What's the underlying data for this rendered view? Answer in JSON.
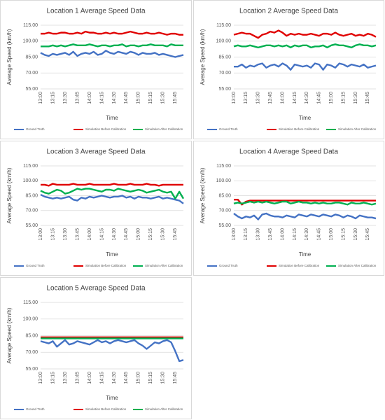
{
  "chart_data": [
    {
      "type": "line",
      "title": "Location 1 Average Speed Data",
      "y_label": "Average Speed (km/h)",
      "x_label": "Time",
      "categories": [
        "13:00",
        null,
        null,
        "13:15",
        null,
        null,
        "13:30",
        null,
        null,
        "13:45",
        null,
        null,
        "14:00",
        null,
        null,
        "14:15",
        null,
        null,
        "14:30",
        null,
        null,
        "14:45",
        null,
        null,
        "15:00",
        null,
        null,
        "15:15",
        null,
        null,
        "15:30",
        null,
        null,
        "15:45",
        null,
        null
      ],
      "ylim": [
        55,
        115
      ],
      "yticks": [
        {
          "value": 55,
          "label": "55.00"
        },
        {
          "value": 70,
          "label": "70.00"
        },
        {
          "value": 85,
          "label": "85.00"
        },
        {
          "value": 100,
          "label": "100.00"
        },
        {
          "value": 115,
          "label": "115.00"
        }
      ],
      "grid": true,
      "series": [
        {
          "name": "Ground Truth",
          "color": "#4472c4",
          "values": [
            89,
            87,
            86,
            88,
            87,
            88,
            89,
            87,
            90,
            86,
            88,
            89,
            88,
            90,
            87,
            88,
            91,
            89,
            88,
            90,
            89,
            88,
            90,
            89,
            87,
            89,
            88,
            88,
            89,
            87,
            88,
            87,
            86,
            85,
            86,
            87
          ]
        },
        {
          "name": "Simulation Before Calibration",
          "color": "#e00000",
          "values": [
            107,
            107,
            108,
            107,
            107,
            108,
            108,
            107,
            107,
            108,
            107,
            109,
            108,
            108,
            107,
            107,
            108,
            107,
            108,
            107,
            107,
            108,
            109,
            108,
            107,
            107,
            108,
            107,
            107,
            108,
            107,
            106,
            107,
            107,
            106,
            106
          ]
        },
        {
          "name": "Simulation After Calibration",
          "color": "#00b050",
          "values": [
            95,
            95,
            95,
            96,
            95,
            96,
            95,
            96,
            97,
            96,
            96,
            96,
            97,
            96,
            95,
            96,
            96,
            95,
            96,
            96,
            97,
            95,
            96,
            96,
            95,
            96,
            96,
            97,
            96,
            96,
            96,
            95,
            97,
            96,
            96,
            96
          ]
        }
      ]
    },
    {
      "type": "line",
      "title": "Location 2 Average Speed Data",
      "y_label": "Average Speed (km/h)",
      "x_label": "Time",
      "categories": [
        "13:00",
        null,
        null,
        "13:15",
        null,
        null,
        "13:30",
        null,
        null,
        "13:45",
        null,
        null,
        "14:00",
        null,
        null,
        "14:15",
        null,
        null,
        "14:30",
        null,
        null,
        "14:45",
        null,
        null,
        "15:00",
        null,
        null,
        "15:15",
        null,
        null,
        "15:30",
        null,
        null,
        "15:45",
        null,
        null
      ],
      "ylim": [
        55,
        115
      ],
      "yticks": [
        {
          "value": 55,
          "label": "55.00"
        },
        {
          "value": 70,
          "label": "70.00"
        },
        {
          "value": 85,
          "label": "85.00"
        },
        {
          "value": 100,
          "label": "100.00"
        },
        {
          "value": 115,
          "label": "115.00"
        }
      ],
      "grid": true,
      "series": [
        {
          "name": "Ground Truth",
          "color": "#4472c4",
          "values": [
            76,
            76,
            78,
            75,
            77,
            76,
            78,
            79,
            75,
            77,
            78,
            76,
            79,
            77,
            73,
            78,
            77,
            76,
            77,
            75,
            79,
            78,
            73,
            78,
            77,
            75,
            79,
            78,
            76,
            78,
            77,
            76,
            78,
            75,
            76,
            77
          ]
        },
        {
          "name": "Simulation Before Calibration",
          "color": "#e00000",
          "values": [
            106,
            107,
            108,
            107,
            107,
            105,
            103,
            106,
            107,
            109,
            108,
            110,
            108,
            105,
            107,
            106,
            107,
            106,
            106,
            107,
            106,
            105,
            107,
            107,
            106,
            108,
            106,
            105,
            106,
            107,
            105,
            106,
            105,
            107,
            106,
            104
          ]
        },
        {
          "name": "Simulation After Calibration",
          "color": "#00b050",
          "values": [
            95,
            96,
            95,
            95,
            96,
            95,
            94,
            95,
            96,
            96,
            95,
            96,
            95,
            96,
            94,
            96,
            95,
            96,
            96,
            94,
            95,
            95,
            96,
            94,
            96,
            97,
            96,
            96,
            95,
            94,
            96,
            97,
            96,
            96,
            95,
            96
          ]
        }
      ]
    },
    {
      "type": "line",
      "title": "Location 3 Average Speed Data",
      "y_label": "Average Speed (km/h)",
      "x_label": "Time",
      "categories": [
        "13:00",
        null,
        null,
        "13:15",
        null,
        null,
        "13:30",
        null,
        null,
        "13:45",
        null,
        null,
        "14:00",
        null,
        null,
        "14:15",
        null,
        null,
        "14:30",
        null,
        null,
        "14:45",
        null,
        null,
        "15:00",
        null,
        null,
        "15:15",
        null,
        null,
        "15:30",
        null,
        null,
        "15:45",
        null,
        null
      ],
      "ylim": [
        55,
        115
      ],
      "yticks": [
        {
          "value": 55,
          "label": "55.00"
        },
        {
          "value": 70,
          "label": "70.00"
        },
        {
          "value": 85,
          "label": "85.00"
        },
        {
          "value": 100,
          "label": "100.00"
        },
        {
          "value": 115,
          "label": "115.00"
        }
      ],
      "grid": true,
      "series": [
        {
          "name": "Ground Truth",
          "color": "#4472c4",
          "values": [
            86,
            84,
            83,
            82,
            83,
            82,
            83,
            84,
            81,
            80,
            83,
            82,
            84,
            83,
            84,
            85,
            84,
            83,
            84,
            84,
            85,
            83,
            84,
            82,
            84,
            83,
            83,
            82,
            83,
            84,
            82,
            83,
            82,
            81,
            80,
            77
          ]
        },
        {
          "name": "Simulation Before Calibration",
          "color": "#e00000",
          "values": [
            96,
            96,
            95,
            97,
            96,
            96,
            96,
            96,
            97,
            96,
            96,
            96,
            97,
            96,
            96,
            96,
            96,
            96,
            97,
            96,
            96,
            96,
            97,
            96,
            96,
            96,
            97,
            96,
            96,
            95,
            96,
            96,
            96,
            96,
            96,
            96
          ]
        },
        {
          "name": "Simulation After Calibration",
          "color": "#00b050",
          "values": [
            90,
            88,
            87,
            89,
            91,
            90,
            87,
            88,
            90,
            92,
            91,
            92,
            92,
            91,
            90,
            89,
            91,
            91,
            90,
            92,
            91,
            90,
            89,
            90,
            91,
            90,
            88,
            89,
            90,
            91,
            89,
            88,
            89,
            82,
            89,
            82
          ]
        }
      ]
    },
    {
      "type": "line",
      "title": "Location 4 Average Speed Data",
      "y_label": "Average Speed (km/h)",
      "x_label": "Time",
      "categories": [
        "13:00",
        null,
        null,
        "13:15",
        null,
        null,
        "13:30",
        null,
        null,
        "13:45",
        null,
        null,
        "14:00",
        null,
        null,
        "14:15",
        null,
        null,
        "14:30",
        null,
        null,
        "14:45",
        null,
        null,
        "15:00",
        null,
        null,
        "15:15",
        null,
        null,
        "15:30",
        null,
        null,
        "15:45",
        null,
        null
      ],
      "ylim": [
        55,
        115
      ],
      "yticks": [
        {
          "value": 55,
          "label": "55.00"
        },
        {
          "value": 70,
          "label": "70.00"
        },
        {
          "value": 85,
          "label": "85.00"
        },
        {
          "value": 100,
          "label": "100.00"
        },
        {
          "value": 115,
          "label": "115.00"
        }
      ],
      "grid": true,
      "series": [
        {
          "name": "Ground Truth",
          "color": "#4472c4",
          "values": [
            67,
            64,
            62,
            64,
            63,
            65,
            61,
            66,
            67,
            65,
            64,
            64,
            63,
            65,
            64,
            63,
            66,
            65,
            64,
            66,
            65,
            64,
            66,
            65,
            64,
            66,
            65,
            63,
            65,
            64,
            62,
            65,
            64,
            63,
            63,
            62
          ]
        },
        {
          "name": "Simulation Before Calibration",
          "color": "#e00000",
          "values": [
            81,
            81,
            76,
            79,
            80,
            80,
            80,
            80,
            80,
            80,
            80,
            80,
            80,
            80,
            80,
            80,
            80,
            80,
            80,
            80,
            80,
            80,
            80,
            80,
            80,
            80,
            80,
            80,
            80,
            80,
            80,
            80,
            80,
            80,
            80,
            80
          ]
        },
        {
          "name": "Simulation After Calibration",
          "color": "#00b050",
          "values": [
            77,
            78,
            77,
            78,
            79,
            78,
            79,
            78,
            79,
            78,
            77,
            78,
            79,
            79,
            77,
            78,
            79,
            78,
            78,
            77,
            78,
            77,
            78,
            77,
            77,
            78,
            78,
            77,
            76,
            78,
            77,
            77,
            78,
            77,
            76,
            77
          ]
        }
      ]
    },
    {
      "type": "line",
      "title": "Location 5 Average Speed Data",
      "y_label": "Average Speed (km/h)",
      "x_label": "Time",
      "categories": [
        "13:00",
        null,
        null,
        "13:15",
        null,
        null,
        "13:30",
        null,
        null,
        "13:45",
        null,
        null,
        "14:00",
        null,
        null,
        "14:15",
        null,
        null,
        "14:30",
        null,
        null,
        "14:45",
        null,
        null,
        "15:00",
        null,
        null,
        "15:15",
        null,
        null,
        "15:30",
        null,
        null,
        "15:45",
        null,
        null
      ],
      "ylim": [
        55,
        115
      ],
      "yticks": [
        {
          "value": 55,
          "label": "55.00"
        },
        {
          "value": 70,
          "label": "70.00"
        },
        {
          "value": 85,
          "label": "85.00"
        },
        {
          "value": 100,
          "label": "100.00"
        },
        {
          "value": 115,
          "label": "115.00"
        }
      ],
      "grid": true,
      "series": [
        {
          "name": "Ground Truth",
          "color": "#4472c4",
          "values": [
            80,
            79,
            78,
            80,
            75,
            78,
            81,
            77,
            78,
            80,
            79,
            78,
            77,
            79,
            81,
            79,
            80,
            78,
            80,
            81,
            80,
            79,
            80,
            81,
            78,
            76,
            73,
            76,
            79,
            78,
            80,
            81,
            79,
            71,
            62,
            63
          ]
        },
        {
          "name": "Simulation Before Calibration",
          "color": "#e00000",
          "values": [
            83.5,
            83.5,
            83.5,
            83.5,
            83.5,
            83.5,
            83.5,
            83.5,
            83.5,
            83.5,
            83.5,
            83.5,
            83.5,
            83.5,
            83.5,
            83.5,
            83.5,
            83.5,
            83.5,
            83.5,
            83.5,
            83.5,
            83.5,
            83.5,
            83.5,
            83.5,
            83.5,
            83.5,
            83.5,
            83.5,
            83.5,
            83.5,
            83.5,
            83.5,
            83.5,
            83.5
          ]
        },
        {
          "name": "Simulation After Calibration",
          "color": "#00b050",
          "values": [
            82.5,
            82.5,
            82.5,
            82.5,
            82.5,
            82.5,
            82.5,
            82.5,
            82.5,
            82.5,
            82.5,
            82.5,
            82.5,
            82.5,
            82.5,
            82.5,
            82.5,
            82.5,
            82.5,
            82.5,
            82.5,
            82.5,
            82.5,
            82.5,
            82.5,
            82.5,
            82.5,
            82.5,
            82.5,
            82.5,
            82.5,
            82.5,
            82.5,
            82.5,
            82.5,
            82.5
          ]
        }
      ]
    }
  ]
}
